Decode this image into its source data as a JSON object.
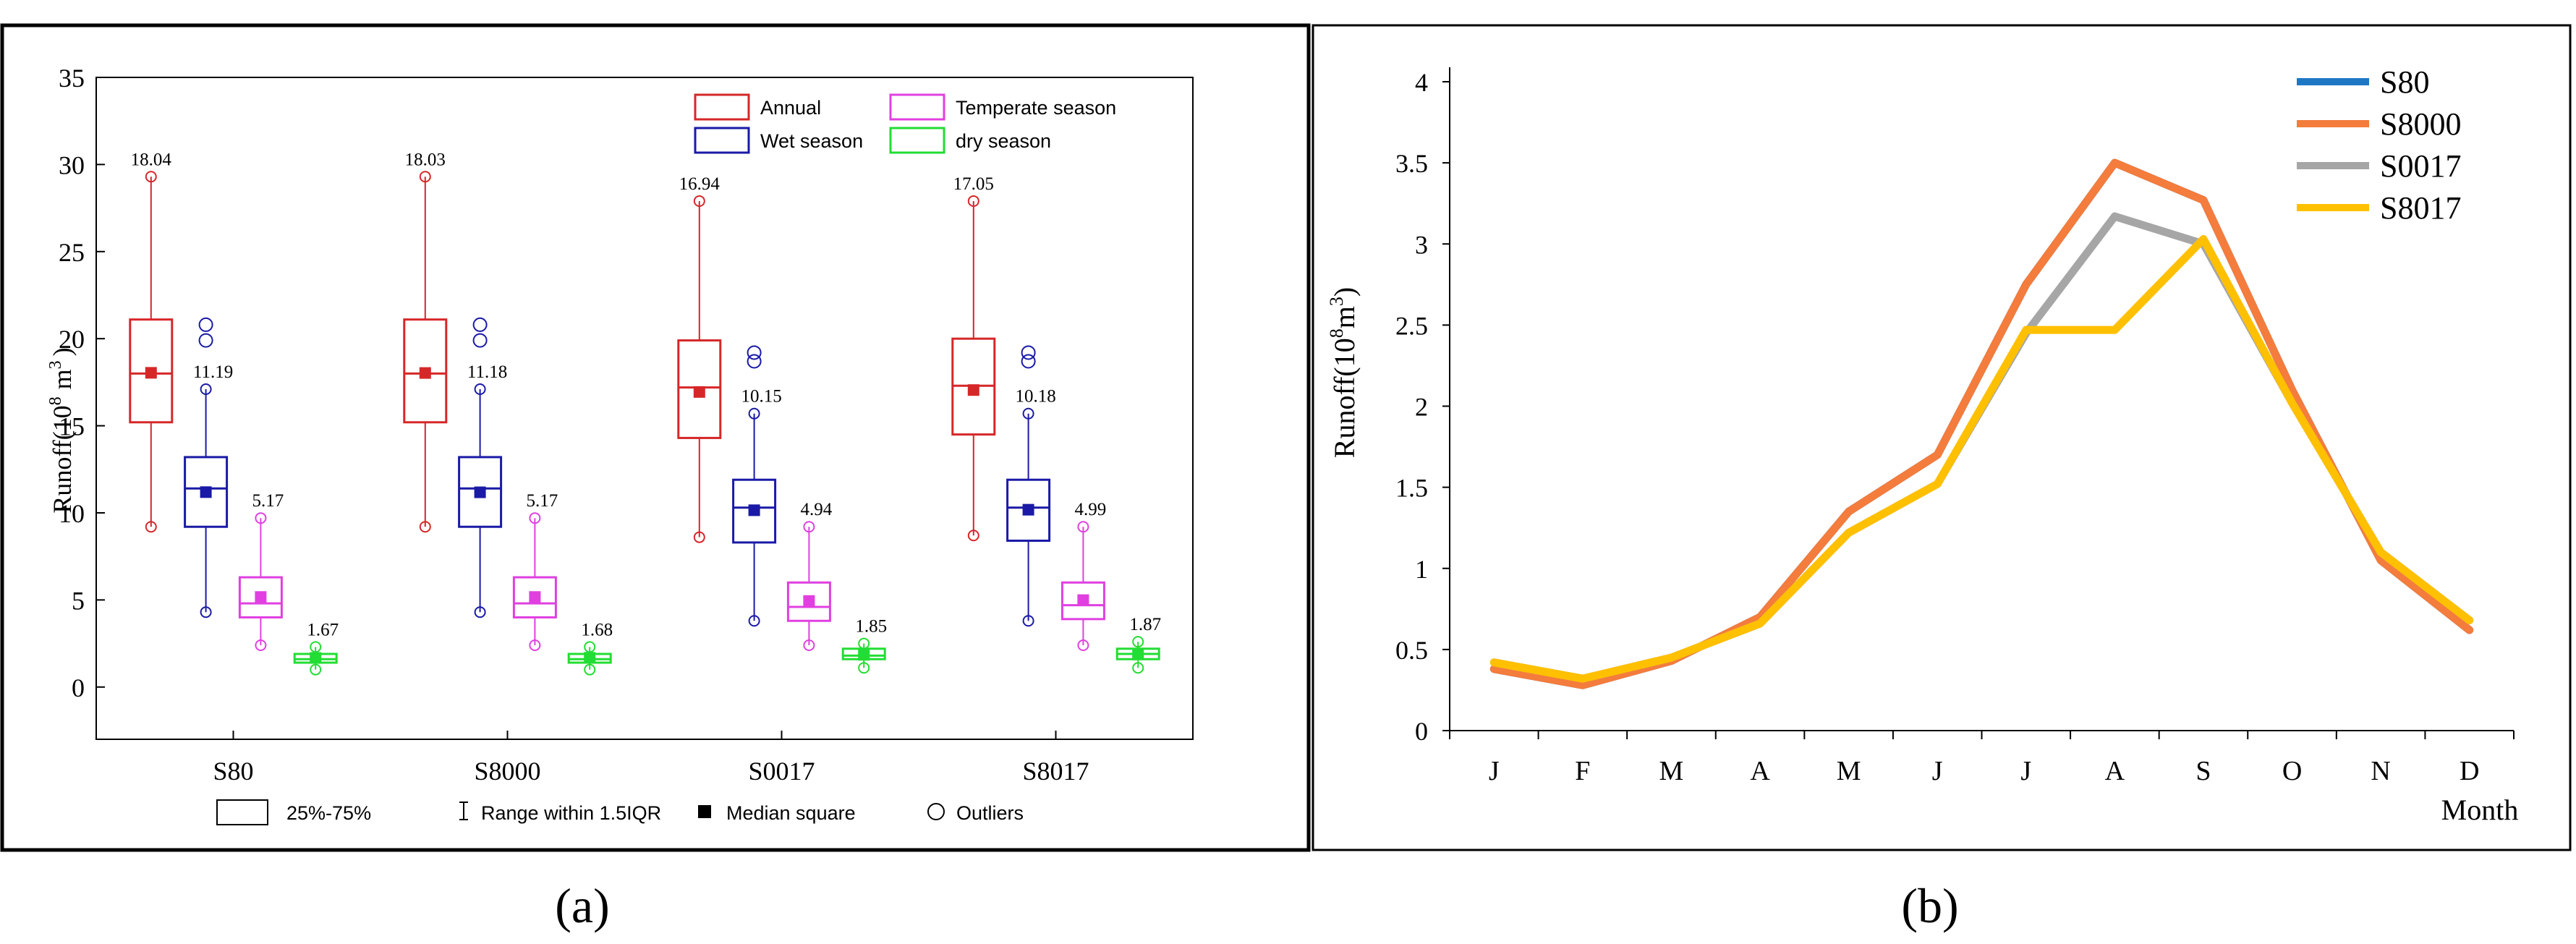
{
  "chart_data": [
    {
      "type": "box",
      "panel_label": "(a)",
      "ylabel_main": "Runoff(10",
      "ylabel_exp": "8",
      "ylabel_unit": "m",
      "ylabel_unit_exp": "3",
      "ylabel_close": ")",
      "ylim": [
        -3,
        35
      ],
      "yticks": [
        "0",
        "5",
        "10",
        "15",
        "20",
        "25",
        "30",
        "35"
      ],
      "categories": [
        "S80",
        "S8000",
        "S0017",
        "S8017"
      ],
      "series": [
        {
          "name": "Annual",
          "color": "#d62728",
          "boxes": [
            {
              "min": 9.2,
              "q1": 15.2,
              "median": 18.0,
              "q3": 21.1,
              "max": 29.3,
              "mean": 18.04,
              "mean_label": "18.04",
              "outliers": []
            },
            {
              "min": 9.2,
              "q1": 15.2,
              "median": 18.0,
              "q3": 21.1,
              "max": 29.3,
              "mean": 18.03,
              "mean_label": "18.03",
              "outliers": []
            },
            {
              "min": 8.6,
              "q1": 14.3,
              "median": 17.2,
              "q3": 19.9,
              "max": 27.9,
              "mean": 16.94,
              "mean_label": "16.94",
              "outliers": []
            },
            {
              "min": 8.7,
              "q1": 14.5,
              "median": 17.3,
              "q3": 20.0,
              "max": 27.9,
              "mean": 17.05,
              "mean_label": "17.05",
              "outliers": []
            }
          ]
        },
        {
          "name": "Wet season",
          "color": "#1a1aa6",
          "boxes": [
            {
              "min": 4.3,
              "q1": 9.2,
              "median": 11.4,
              "q3": 13.2,
              "max": 17.1,
              "mean": 11.19,
              "mean_label": "11.19",
              "outliers": [
                19.9,
                20.8
              ]
            },
            {
              "min": 4.3,
              "q1": 9.2,
              "median": 11.4,
              "q3": 13.2,
              "max": 17.1,
              "mean": 11.18,
              "mean_label": "11.18",
              "outliers": [
                19.9,
                20.8
              ]
            },
            {
              "min": 3.8,
              "q1": 8.3,
              "median": 10.3,
              "q3": 11.9,
              "max": 15.7,
              "mean": 10.15,
              "mean_label": "10.15",
              "outliers": [
                18.7,
                19.2
              ]
            },
            {
              "min": 3.8,
              "q1": 8.4,
              "median": 10.3,
              "q3": 11.9,
              "max": 15.7,
              "mean": 10.18,
              "mean_label": "10.18",
              "outliers": [
                18.7,
                19.2
              ]
            }
          ]
        },
        {
          "name": "Temperate season",
          "color": "#e040e0",
          "boxes": [
            {
              "min": 2.4,
              "q1": 4.0,
              "median": 4.8,
              "q3": 6.3,
              "max": 9.7,
              "mean": 5.17,
              "mean_label": "5.17",
              "outliers": []
            },
            {
              "min": 2.4,
              "q1": 4.0,
              "median": 4.8,
              "q3": 6.3,
              "max": 9.7,
              "mean": 5.17,
              "mean_label": "5.17",
              "outliers": []
            },
            {
              "min": 2.4,
              "q1": 3.8,
              "median": 4.6,
              "q3": 6.0,
              "max": 9.2,
              "mean": 4.94,
              "mean_label": "4.94",
              "outliers": []
            },
            {
              "min": 2.4,
              "q1": 3.9,
              "median": 4.7,
              "q3": 6.0,
              "max": 9.2,
              "mean": 4.99,
              "mean_label": "4.99",
              "outliers": []
            }
          ]
        },
        {
          "name": "dry season",
          "color": "#22dd33",
          "boxes": [
            {
              "min": 1.0,
              "q1": 1.4,
              "median": 1.6,
              "q3": 1.9,
              "max": 2.3,
              "mean": 1.67,
              "mean_label": "1.67",
              "outliers": []
            },
            {
              "min": 1.0,
              "q1": 1.4,
              "median": 1.6,
              "q3": 1.9,
              "max": 2.3,
              "mean": 1.68,
              "mean_label": "1.68",
              "outliers": []
            },
            {
              "min": 1.1,
              "q1": 1.6,
              "median": 1.8,
              "q3": 2.2,
              "max": 2.5,
              "mean": 1.85,
              "mean_label": "1.85",
              "outliers": []
            },
            {
              "min": 1.1,
              "q1": 1.6,
              "median": 1.9,
              "q3": 2.2,
              "max": 2.6,
              "mean": 1.87,
              "mean_label": "1.87",
              "outliers": []
            }
          ]
        }
      ],
      "legend_placement": "top-right",
      "bottom_legend": [
        "25%-75%",
        "Range within 1.5IQR",
        "Median square",
        "Outliers"
      ]
    },
    {
      "type": "line",
      "panel_label": "(b)",
      "ylabel_main": "Runoff(10",
      "ylabel_exp": "8",
      "ylabel_unit": "m",
      "ylabel_unit_exp": "3",
      "ylabel_close": ")",
      "xlabel": "Month",
      "categories": [
        "J",
        "F",
        "M",
        "A",
        "M",
        "J",
        "J",
        "A",
        "S",
        "O",
        "N",
        "D"
      ],
      "ylim": [
        0,
        4
      ],
      "yticks": [
        "0",
        "0.5",
        "1",
        "1.5",
        "2",
        "2.5",
        "3",
        "3.5",
        "4"
      ],
      "series": [
        {
          "name": "S80",
          "color": "#1f77c4",
          "values": [
            0.38,
            0.28,
            0.43,
            0.7,
            1.35,
            1.7,
            2.75,
            3.5,
            3.27,
            2.1,
            1.05,
            0.62
          ]
        },
        {
          "name": "S8000",
          "color": "#f47c3c",
          "values": [
            0.38,
            0.28,
            0.43,
            0.7,
            1.35,
            1.7,
            2.75,
            3.5,
            3.27,
            2.1,
            1.05,
            0.62
          ]
        },
        {
          "name": "S0017",
          "color": "#a6a6a6",
          "values": [
            0.42,
            0.32,
            0.45,
            0.66,
            1.22,
            1.52,
            2.45,
            3.17,
            3.0,
            2.02,
            1.1,
            0.68
          ]
        },
        {
          "name": "S8017",
          "color": "#ffc000",
          "values": [
            0.42,
            0.32,
            0.45,
            0.66,
            1.22,
            1.52,
            2.47,
            2.47,
            3.03,
            2.02,
            1.1,
            0.68
          ]
        }
      ],
      "legend_placement": "top-right"
    }
  ]
}
